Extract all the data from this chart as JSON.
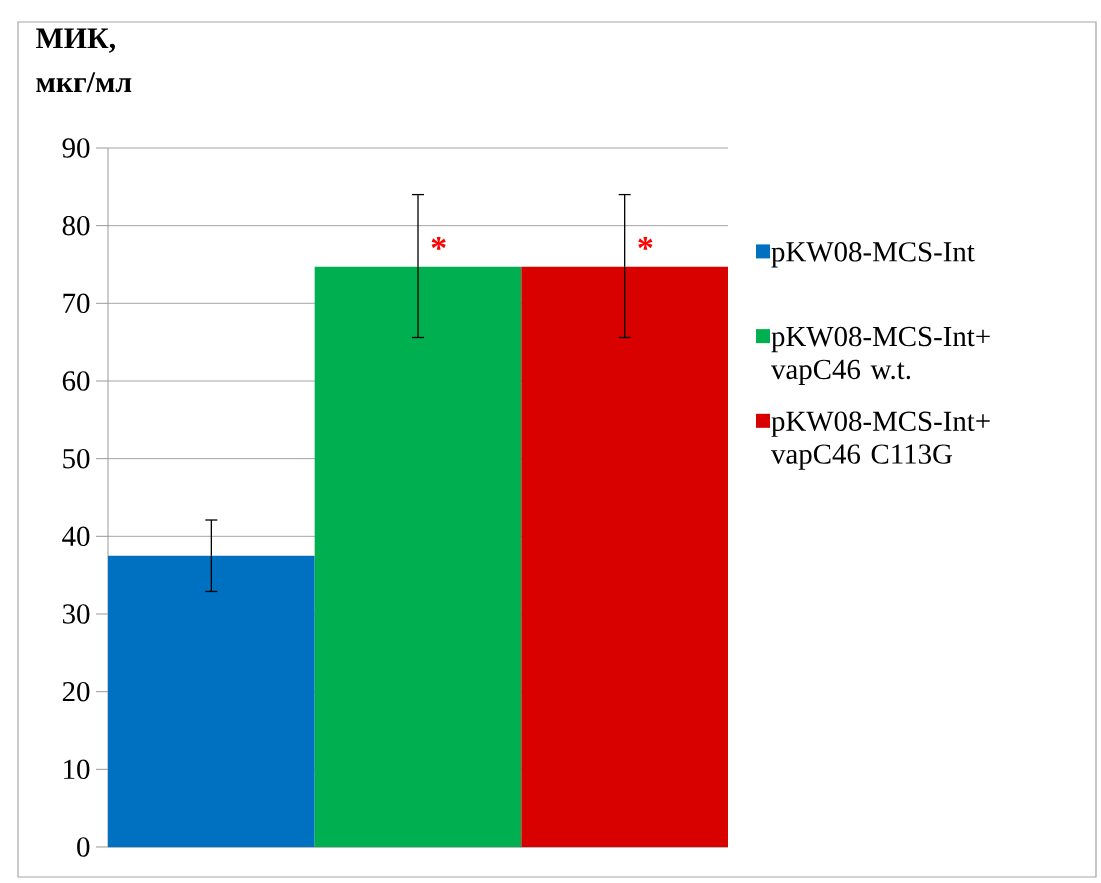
{
  "chart_data": {
    "type": "bar",
    "ylabel": "МИК, мкг/мл",
    "categories": [
      null
    ],
    "series": [
      {
        "name": "pKW08-MCS-Int",
        "color": "#0070c0",
        "values": [
          37.5
        ],
        "errors": [
          [
            32.9,
            42.1
          ]
        ]
      },
      {
        "name": "pKW08-MCS-Int+ vapC46 w.t.",
        "color": "#00b050",
        "values": [
          74.7
        ],
        "errors": [
          [
            65.6,
            84
          ]
        ]
      },
      {
        "name": "pKW08-MCS-Int+ vapC46 C113G",
        "color": "#d90000",
        "values": [
          74.7
        ],
        "errors": [
          [
            65.6,
            84
          ]
        ]
      }
    ],
    "annotations": [
      "*",
      "*"
    ],
    "ylim": [
      0,
      90
    ],
    "yticks": [
      0,
      10,
      20,
      30,
      40,
      50,
      60,
      70,
      80,
      90
    ],
    "grid": "y",
    "legend": "right"
  }
}
